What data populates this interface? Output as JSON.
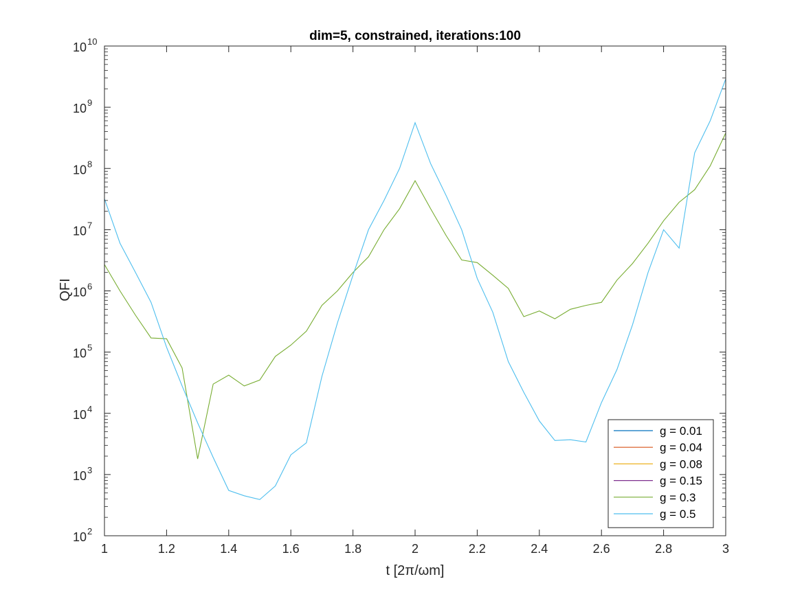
{
  "chart_data": {
    "type": "line",
    "title": "dim=5, constrained, iterations:100",
    "xlabel": "t [2π/ωm]",
    "ylabel": "QFI",
    "xlim": [
      1,
      3
    ],
    "ylim": [
      100,
      10000000000
    ],
    "yscale": "log",
    "grid": false,
    "legend_placement": "bottom-right",
    "x_ticks": [
      1,
      1.2,
      1.4,
      1.6,
      1.8,
      2,
      2.2,
      2.4,
      2.6,
      2.8,
      3
    ],
    "x_tick_labels": [
      "1",
      "1.2",
      "1.4",
      "1.6",
      "1.8",
      "2",
      "2.2",
      "2.4",
      "2.6",
      "2.8",
      "3"
    ],
    "y_tick_exponents": [
      2,
      3,
      4,
      5,
      6,
      7,
      8,
      9,
      10
    ],
    "y_tick_base": "10",
    "x": [
      1.0,
      1.05,
      1.1,
      1.15,
      1.2,
      1.25,
      1.3,
      1.35,
      1.4,
      1.45,
      1.5,
      1.55,
      1.6,
      1.65,
      1.7,
      1.75,
      1.8,
      1.85,
      1.9,
      1.95,
      2.0,
      2.05,
      2.1,
      2.15,
      2.2,
      2.25,
      2.3,
      2.35,
      2.4,
      2.45,
      2.5,
      2.55,
      2.6,
      2.65,
      2.7,
      2.75,
      2.8,
      2.85,
      2.9,
      2.95,
      3.0
    ],
    "series": [
      {
        "name": "g = 0.01",
        "color": "#0072BD",
        "values": null
      },
      {
        "name": "g = 0.04",
        "color": "#D95319",
        "values": null
      },
      {
        "name": "g = 0.08",
        "color": "#EDB120",
        "values": null
      },
      {
        "name": "g = 0.15",
        "color": "#7E2F8E",
        "values": null
      },
      {
        "name": "g = 0.3",
        "color": "#77AC30",
        "values": [
          2700000,
          1000000,
          400000,
          170000,
          165000,
          55000,
          1800,
          30000,
          42000,
          28000,
          35000,
          85000,
          130000,
          220000,
          580000,
          1000000,
          2000000,
          3600000,
          10000000,
          22000000,
          63000000,
          22000000,
          8000000,
          3200000,
          2900000,
          1800000,
          1100000,
          380000,
          470000,
          350000,
          500000,
          580000,
          650000,
          1500000,
          2800000,
          6000000,
          14000000,
          28000000,
          45000000,
          110000000,
          380000000
        ]
      },
      {
        "name": "g = 0.5",
        "color": "#4DBEEE",
        "values": [
          32000000,
          6000000,
          2000000,
          650000,
          120000,
          28000,
          7000,
          1900,
          550,
          450,
          390,
          650,
          2100,
          3300,
          40000,
          300000,
          1800000,
          10000000,
          30000000,
          100000000,
          560000000,
          120000000,
          36000000,
          10000000,
          1600000,
          450000,
          70000,
          22000,
          7500,
          3600,
          3700,
          3400,
          15000,
          52000,
          280000,
          2000000,
          10000000,
          5000000,
          180000000,
          600000000,
          2900000000
        ]
      }
    ]
  }
}
